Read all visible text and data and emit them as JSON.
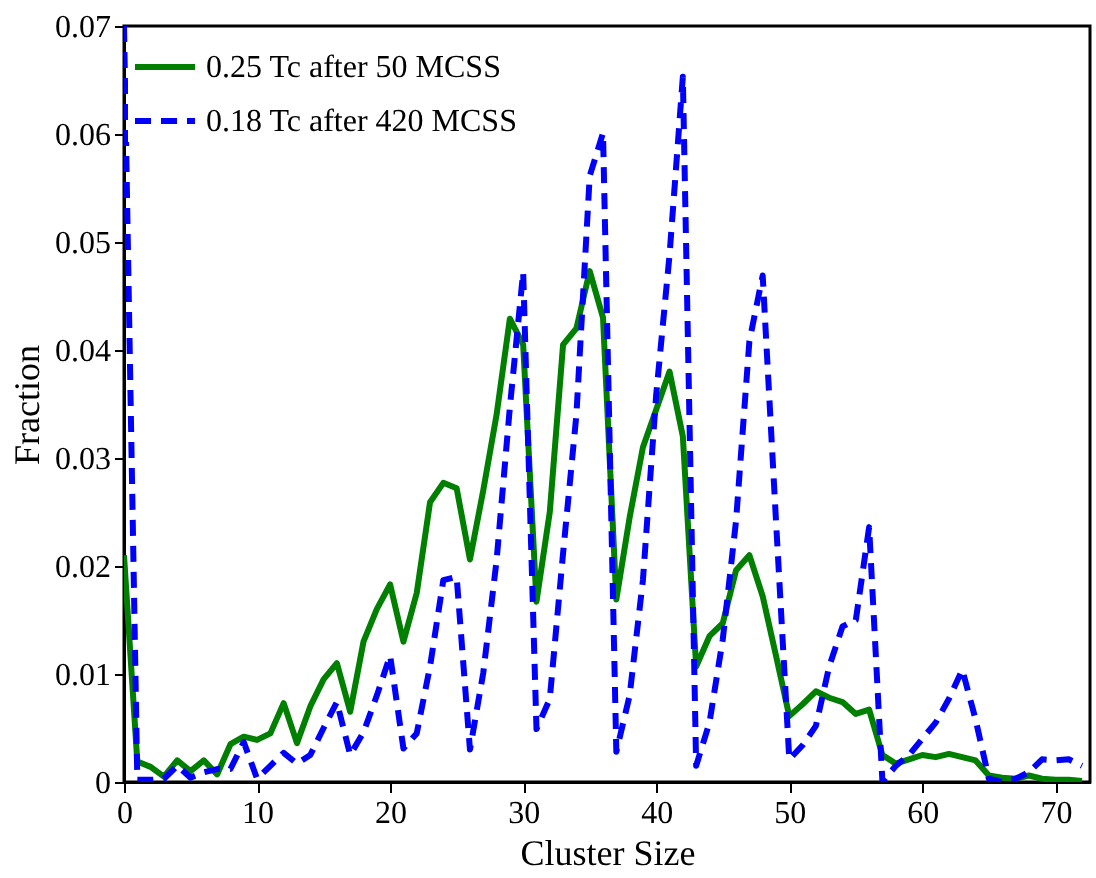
{
  "chart_data": {
    "type": "line",
    "xlabel": "Cluster Size",
    "ylabel": "Fraction",
    "xlim": [
      0,
      72.6
    ],
    "ylim": [
      0,
      0.07
    ],
    "xticks": [
      0,
      10,
      20,
      30,
      40,
      50,
      60,
      70
    ],
    "yticks": [
      0,
      0.01,
      0.02,
      0.03,
      0.04,
      0.05,
      0.06,
      0.07
    ],
    "grid": false,
    "legend": "top left",
    "marker": "none",
    "x": [
      0,
      1,
      2,
      3,
      4,
      5,
      6,
      7,
      8,
      9,
      10,
      11,
      12,
      13,
      14,
      15,
      16,
      17,
      18,
      19,
      20,
      21,
      22,
      23,
      24,
      25,
      26,
      27,
      28,
      29,
      30,
      31,
      32,
      33,
      34,
      35,
      36,
      37,
      38,
      39,
      40,
      41,
      42,
      43,
      44,
      45,
      46,
      47,
      48,
      49,
      50,
      51,
      52,
      53,
      54,
      55,
      56,
      57,
      58,
      59,
      60,
      61,
      62,
      63,
      64,
      65,
      66,
      67,
      68,
      69,
      70,
      71,
      72
    ],
    "series": [
      {
        "name": "0.25 Tc after 50 MCSS",
        "color": "#007f00",
        "line_style": "solid",
        "values": [
          0.021,
          0.0019,
          0.0014,
          0.0005,
          0.002,
          0.001,
          0.002,
          0.0007,
          0.0035,
          0.0042,
          0.0039,
          0.0045,
          0.0073,
          0.0036,
          0.007,
          0.0095,
          0.011,
          0.0065,
          0.013,
          0.016,
          0.0183,
          0.013,
          0.0175,
          0.0259,
          0.0277,
          0.0272,
          0.0206,
          0.027,
          0.034,
          0.0429,
          0.0405,
          0.0167,
          0.025,
          0.0405,
          0.042,
          0.0473,
          0.043,
          0.0169,
          0.0245,
          0.031,
          0.0345,
          0.038,
          0.032,
          0.0107,
          0.0135,
          0.0147,
          0.0196,
          0.021,
          0.0172,
          0.0117,
          0.0061,
          0.0072,
          0.0084,
          0.0078,
          0.0074,
          0.0063,
          0.0067,
          0.0025,
          0.0017,
          0.0021,
          0.0025,
          0.0023,
          0.0026,
          0.0023,
          0.002,
          0.0006,
          0.0004,
          0.0003,
          0.0006,
          0.0003,
          0.0002,
          0.0002,
          0.0001
        ]
      },
      {
        "name": "0.18 Tc after 420 MCSS",
        "color": "#0000ff",
        "line_style": "dashed",
        "values": [
          0.07,
          0.0002,
          0.0002,
          0.0003,
          0.0015,
          0.0004,
          0.0009,
          0.0012,
          0.0012,
          0.0037,
          0.0003,
          0.0015,
          0.0027,
          0.0017,
          0.0025,
          0.005,
          0.0074,
          0.0025,
          0.0046,
          0.008,
          0.0117,
          0.0031,
          0.0045,
          0.0107,
          0.0187,
          0.019,
          0.003,
          0.0101,
          0.0205,
          0.0347,
          0.0472,
          0.0049,
          0.0077,
          0.0212,
          0.034,
          0.0561,
          0.0601,
          0.0028,
          0.008,
          0.0187,
          0.0359,
          0.0488,
          0.0653,
          0.0015,
          0.0055,
          0.0132,
          0.0242,
          0.0408,
          0.0469,
          0.0242,
          0.0021,
          0.0034,
          0.0052,
          0.0107,
          0.0144,
          0.015,
          0.0236,
          0,
          0.0015,
          0.0025,
          0.004,
          0.0055,
          0.0077,
          0.0104,
          0.0058,
          0.0003,
          0,
          0.0003,
          0.0009,
          0.0021,
          0.002,
          0.0021,
          0.0015
        ]
      }
    ]
  }
}
